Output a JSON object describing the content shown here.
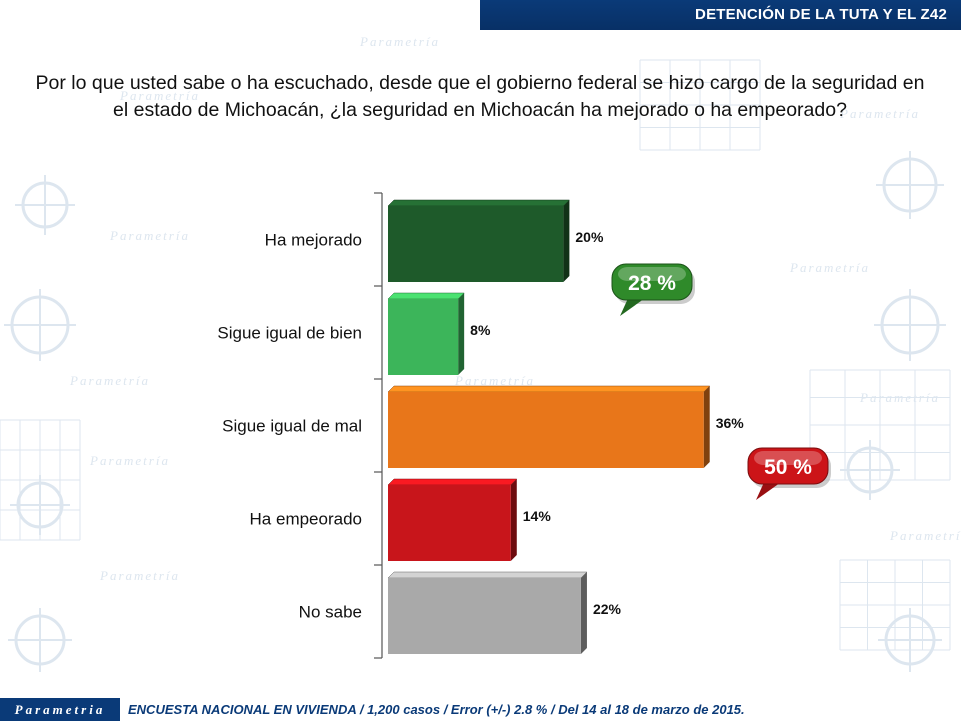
{
  "header": {
    "title": "DETENCIÓN DE LA TUTA Y EL Z42"
  },
  "question": "Por lo que usted sabe o ha escuchado, desde que el gobierno federal se hizo cargo de la seguridad en el estado de Michoacán, ¿la seguridad en Michoacán ha mejorado o ha empeorado?",
  "watermark": {
    "brand": "Parametría"
  },
  "chart_data": {
    "type": "bar",
    "orientation": "horizontal",
    "categories": [
      "Ha mejorado",
      "Sigue igual de bien",
      "Sigue igual de mal",
      "Ha empeorado",
      "No sabe"
    ],
    "values": [
      20,
      8,
      36,
      14,
      22
    ],
    "value_labels": [
      "20%",
      "8%",
      "36%",
      "14%",
      "22%"
    ],
    "colors": [
      "#1e5a2a",
      "#3cb55a",
      "#e8761a",
      "#c8151b",
      "#a9a9a9"
    ],
    "xlim": [
      0,
      40
    ],
    "grid": false,
    "callouts": [
      {
        "label": "28 %",
        "color": "#2f8a2a",
        "groups": [
          "Ha mejorado",
          "Sigue igual de bien"
        ]
      },
      {
        "label": "50 %",
        "color": "#cc1418",
        "groups": [
          "Sigue igual de mal",
          "Ha empeorado"
        ]
      }
    ]
  },
  "footer": {
    "logo": "Parametria",
    "text": "ENCUESTA NACIONAL EN VIVIENDA / 1,200 casos / Error (+/-) 2.8 % / Del 14 al 18 de marzo de 2015."
  }
}
